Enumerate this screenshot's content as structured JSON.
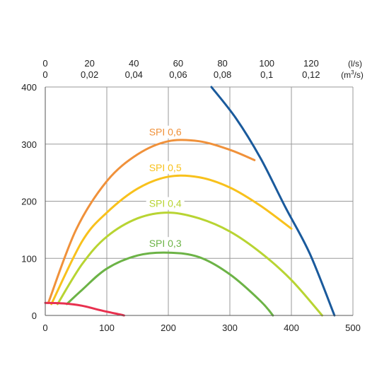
{
  "chart_data": {
    "type": "line",
    "xlim": [
      0,
      500
    ],
    "ylim": [
      0,
      400
    ],
    "x_ticks": [
      "0",
      "100",
      "200",
      "300",
      "400",
      "500"
    ],
    "y_ticks": [
      "0",
      "100",
      "200",
      "300",
      "400"
    ],
    "top_axis_ls": {
      "ticks": [
        "0",
        "20",
        "40",
        "60",
        "80",
        "100",
        "120"
      ],
      "unit": "(l/s)"
    },
    "top_axis_m3s": {
      "ticks": [
        "0",
        "0,02",
        "0,04",
        "0,06",
        "0,08",
        "0,1",
        "0,12"
      ],
      "unit_base": "(m",
      "unit_sup": "3",
      "unit_end": "/s)"
    },
    "grid": true,
    "series": [
      {
        "name": "SPI 0,6",
        "color": "#f0913a",
        "points": [
          [
            5,
            22
          ],
          [
            50,
            150
          ],
          [
            100,
            235
          ],
          [
            150,
            282
          ],
          [
            200,
            305
          ],
          [
            250,
            305
          ],
          [
            300,
            290
          ],
          [
            340,
            272
          ]
        ]
      },
      {
        "name": "SPI 0,5",
        "color": "#f8c11c",
        "points": [
          [
            10,
            20
          ],
          [
            60,
            130
          ],
          [
            100,
            180
          ],
          [
            150,
            222
          ],
          [
            200,
            243
          ],
          [
            250,
            242
          ],
          [
            300,
            224
          ],
          [
            350,
            192
          ],
          [
            400,
            152
          ]
        ]
      },
      {
        "name": "SPI 0,4",
        "color": "#b8d432",
        "points": [
          [
            20,
            20
          ],
          [
            60,
            90
          ],
          [
            100,
            138
          ],
          [
            150,
            170
          ],
          [
            200,
            180
          ],
          [
            250,
            170
          ],
          [
            300,
            147
          ],
          [
            350,
            110
          ],
          [
            400,
            62
          ],
          [
            450,
            0
          ]
        ]
      },
      {
        "name": "SPI 0,3",
        "color": "#6cb346",
        "points": [
          [
            35,
            20
          ],
          [
            60,
            45
          ],
          [
            100,
            82
          ],
          [
            150,
            105
          ],
          [
            200,
            110
          ],
          [
            250,
            102
          ],
          [
            300,
            72
          ],
          [
            350,
            25
          ],
          [
            370,
            0
          ]
        ]
      },
      {
        "color": "#1a5a9c",
        "points": [
          [
            270,
            400
          ],
          [
            310,
            345
          ],
          [
            350,
            275
          ],
          [
            390,
            190
          ],
          [
            430,
            108
          ],
          [
            470,
            0
          ]
        ]
      },
      {
        "color": "#e8314f",
        "points": [
          [
            0,
            22
          ],
          [
            30,
            21
          ],
          [
            60,
            17
          ],
          [
            90,
            9
          ],
          [
            120,
            2
          ],
          [
            128,
            0
          ]
        ]
      }
    ]
  }
}
